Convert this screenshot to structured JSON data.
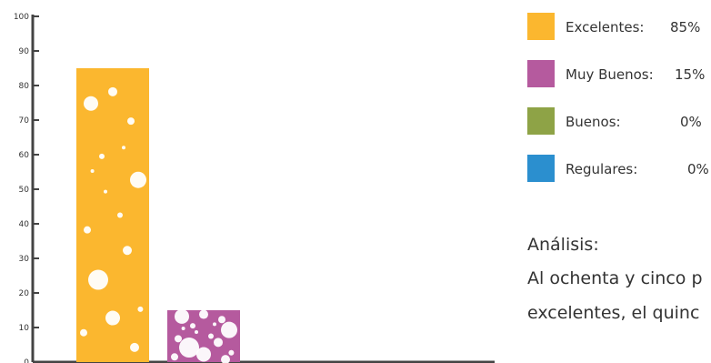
{
  "chart_data": {
    "type": "bar",
    "categories": [
      "Excelentes",
      "Muy Buenos",
      "Buenos",
      "Regulares"
    ],
    "values": [
      85,
      15,
      0,
      0
    ],
    "colors": [
      "#fbb72f",
      "#b55a9e",
      "#8ea346",
      "#2b8fcf"
    ],
    "ylim": [
      0,
      100
    ],
    "yticks": [
      "0",
      "10",
      "20",
      "30",
      "40",
      "50",
      "60",
      "70",
      "80",
      "90",
      "100"
    ],
    "grid": false,
    "legend_position": "right",
    "bar_texture": "white paint splatter"
  },
  "legend": {
    "items": [
      {
        "label": "Excelentes:",
        "value": "85%",
        "color": "#fbb72f"
      },
      {
        "label": "Muy Buenos:",
        "value": "15%",
        "color": "#b55a9e"
      },
      {
        "label": "Buenos:",
        "value": "0%",
        "color": "#8ea346"
      },
      {
        "label": "Regulares:",
        "value": "0%",
        "color": "#2b8fcf"
      }
    ]
  },
  "analysis": {
    "title": "Análisis:",
    "line1": "Al ochenta y cinco p",
    "line2": "excelentes, el quinc"
  }
}
